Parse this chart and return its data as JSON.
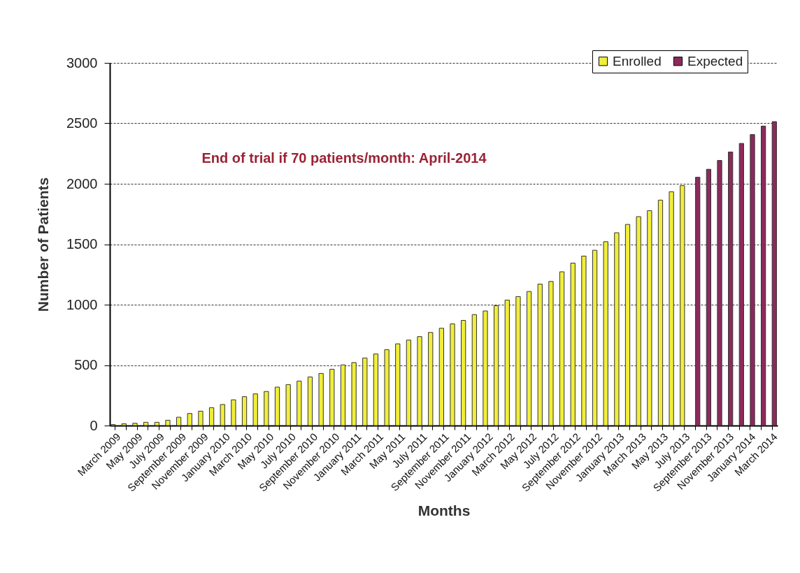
{
  "chart_data": {
    "type": "bar",
    "xlabel": "Months",
    "ylabel": "Number of Patients",
    "annotations": [
      "End of trial if 70 patients/month:  April-2014"
    ],
    "categories": [
      "March 2009",
      null,
      "May 2009",
      null,
      "July 2009",
      null,
      "September 2009",
      null,
      "November 2009",
      null,
      "January 2010",
      null,
      "March 2010",
      null,
      "May 2010",
      null,
      "July 2010",
      null,
      "September 2010",
      null,
      "November 2010",
      null,
      "January 2011",
      null,
      "March 2011",
      null,
      "May 2011",
      null,
      "July 2011",
      null,
      "September 2011",
      null,
      "November 2011",
      null,
      "January 2012",
      null,
      "March 2012",
      null,
      "May 2012",
      null,
      "July 2012",
      null,
      "September 2012",
      null,
      "November 2012",
      null,
      "January 2013",
      null,
      "March 2013",
      null,
      "May 2013",
      null,
      "July 2013",
      null,
      "September 2013",
      null,
      "November 2013",
      null,
      "January 2014",
      null,
      "March 2014"
    ],
    "series": [
      {
        "name": "Enrolled",
        "color": "#f0ee3a",
        "values": [
          8,
          15,
          19,
          27,
          27,
          44,
          69,
          100,
          119,
          148,
          174,
          213,
          239,
          262,
          282,
          318,
          339,
          368,
          402,
          431,
          466,
          502,
          521,
          559,
          592,
          628,
          676,
          707,
          736,
          770,
          805,
          841,
          870,
          918,
          948,
          992,
          1038,
          1067,
          1109,
          1170,
          1192,
          1272,
          1344,
          1402,
          1450,
          1521,
          1595,
          1664,
          1728,
          1778,
          1865,
          1934,
          1985,
          null,
          null,
          null,
          null,
          null,
          null,
          null,
          null
        ]
      },
      {
        "name": "Expected",
        "color": "#8c2a5c",
        "values": [
          null,
          null,
          null,
          null,
          null,
          null,
          null,
          null,
          null,
          null,
          null,
          null,
          null,
          null,
          null,
          null,
          null,
          null,
          null,
          null,
          null,
          null,
          null,
          null,
          null,
          null,
          null,
          null,
          null,
          null,
          null,
          null,
          null,
          null,
          null,
          null,
          null,
          null,
          null,
          null,
          null,
          null,
          null,
          null,
          null,
          null,
          null,
          null,
          null,
          null,
          null,
          null,
          null,
          2054,
          2120,
          2193,
          2263,
          2334,
          2407,
          2477,
          2514
        ]
      }
    ],
    "ylim": [
      0,
      3000
    ],
    "yticks": [
      0,
      500,
      1000,
      1500,
      2000,
      2500,
      3000
    ],
    "grid": "y",
    "legend": "top right"
  }
}
